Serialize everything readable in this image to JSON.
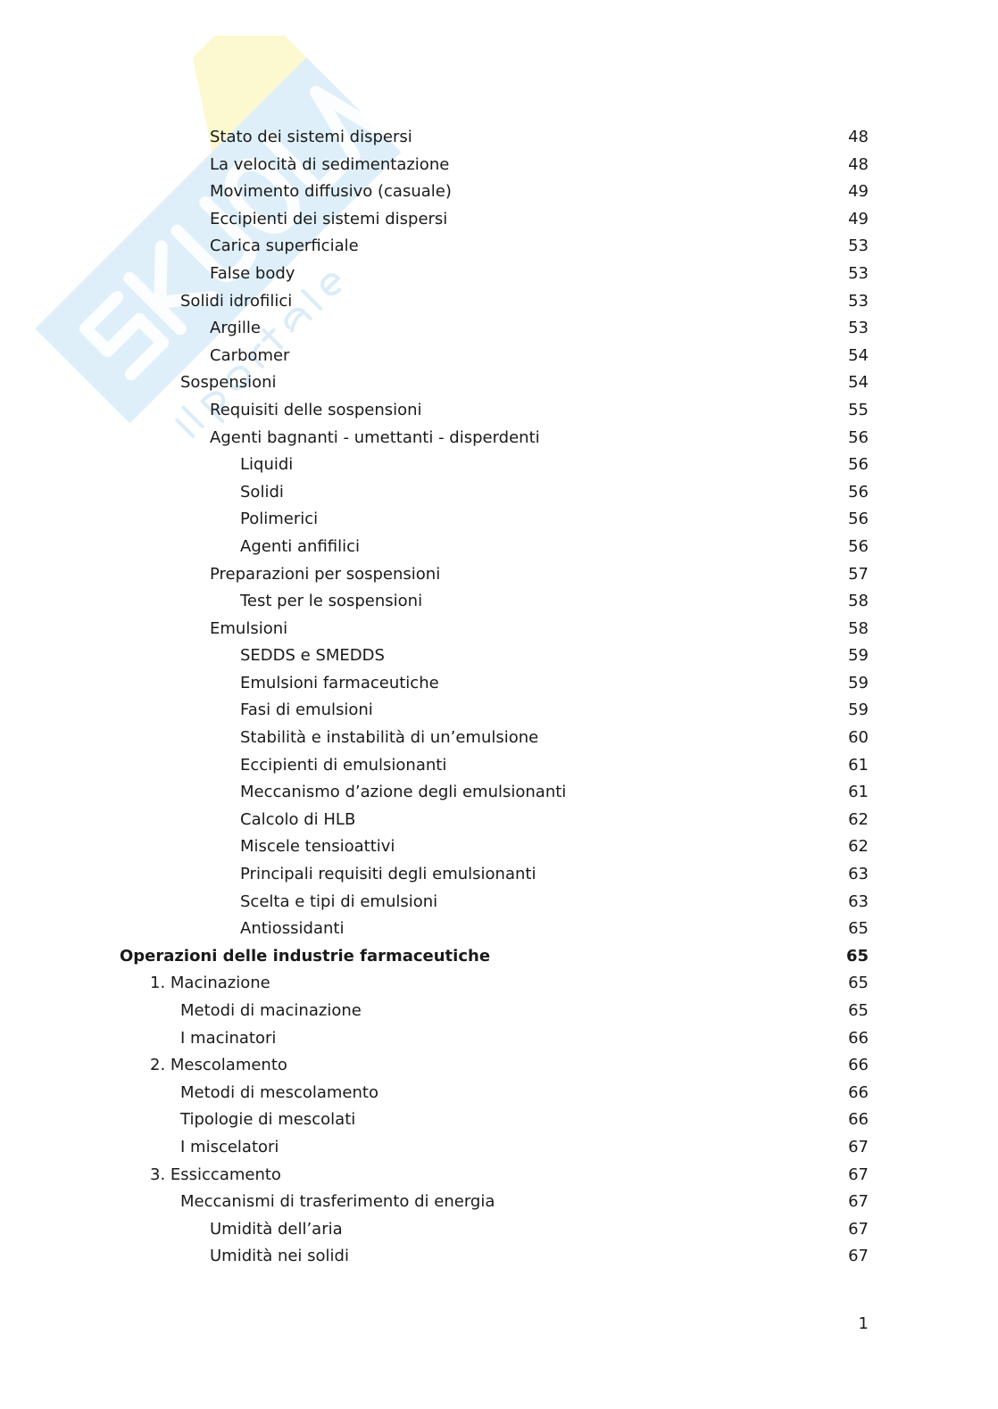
{
  "watermark": {
    "brand": "Skuola.net",
    "tagline": "il portale degli studenti",
    "colors": {
      "blue": "#cfe6f5",
      "yellow": "#fbf6c4"
    }
  },
  "entries": [
    {
      "title": "Stato dei sistemi dispersi",
      "page": "48",
      "level": 3
    },
    {
      "title": "La velocità di sedimentazione",
      "page": "48",
      "level": 3
    },
    {
      "title": "Movimento diffusivo (casuale)",
      "page": "49",
      "level": 3
    },
    {
      "title": "Eccipienti dei sistemi dispersi",
      "page": "49",
      "level": 3
    },
    {
      "title": "Carica superficiale",
      "page": "53",
      "level": 3
    },
    {
      "title": "False body",
      "page": "53",
      "level": 3
    },
    {
      "title": "Solidi idrofilici",
      "page": "53",
      "level": 2
    },
    {
      "title": "Argille",
      "page": "53",
      "level": 3
    },
    {
      "title": "Carbomer",
      "page": "54",
      "level": 3
    },
    {
      "title": "Sospensioni",
      "page": "54",
      "level": 2
    },
    {
      "title": "Requisiti delle sospensioni",
      "page": "55",
      "level": 3
    },
    {
      "title": "Agenti bagnanti - umettanti - disperdenti",
      "page": "56",
      "level": 3
    },
    {
      "title": "Liquidi",
      "page": "56",
      "level": 4
    },
    {
      "title": "Solidi",
      "page": "56",
      "level": 4
    },
    {
      "title": "Polimerici",
      "page": "56",
      "level": 4
    },
    {
      "title": "Agenti anfifilici",
      "page": "56",
      "level": 4
    },
    {
      "title": "Preparazioni per sospensioni",
      "page": "57",
      "level": 3
    },
    {
      "title": "Test per le sospensioni",
      "page": "58",
      "level": 4
    },
    {
      "title": "Emulsioni",
      "page": "58",
      "level": 3
    },
    {
      "title": "SEDDS e SMEDDS",
      "page": "59",
      "level": 4
    },
    {
      "title": "Emulsioni farmaceutiche",
      "page": "59",
      "level": 4
    },
    {
      "title": "Fasi di emulsioni",
      "page": "59",
      "level": 4
    },
    {
      "title": "Stabilità e instabilità di un’emulsione",
      "page": "60",
      "level": 4
    },
    {
      "title": "Eccipienti di emulsionanti",
      "page": "61",
      "level": 4
    },
    {
      "title": "Meccanismo d’azione degli emulsionanti",
      "page": "61",
      "level": 4
    },
    {
      "title": "Calcolo di HLB",
      "page": "62",
      "level": 4
    },
    {
      "title": "Miscele tensioattivi",
      "page": "62",
      "level": 4
    },
    {
      "title": "Principali requisiti degli emulsionanti",
      "page": "63",
      "level": 4
    },
    {
      "title": "Scelta e tipi di emulsioni",
      "page": "63",
      "level": 4
    },
    {
      "title": "Antiossidanti",
      "page": "65",
      "level": 4
    },
    {
      "title": "Operazioni delle industrie farmaceutiche",
      "page": "65",
      "level": 0,
      "bold": true
    },
    {
      "title": "1. Macinazione",
      "page": "65",
      "level": 1
    },
    {
      "title": "Metodi di macinazione",
      "page": "65",
      "level": 2
    },
    {
      "title": "I macinatori",
      "page": "66",
      "level": 2
    },
    {
      "title": "2. Mescolamento",
      "page": "66",
      "level": 1
    },
    {
      "title": "Metodi di mescolamento",
      "page": "66",
      "level": 2
    },
    {
      "title": "Tipologie di mescolati",
      "page": "66",
      "level": 2
    },
    {
      "title": "I miscelatori",
      "page": "67",
      "level": 2
    },
    {
      "title": "3. Essiccamento",
      "page": "67",
      "level": 1
    },
    {
      "title": "Meccanismi di trasferimento di energia",
      "page": "67",
      "level": 2
    },
    {
      "title": "Umidità dell’aria",
      "page": "67",
      "level": 3
    },
    {
      "title": "Umidità nei solidi",
      "page": "67",
      "level": 3
    }
  ],
  "page_number": "1"
}
